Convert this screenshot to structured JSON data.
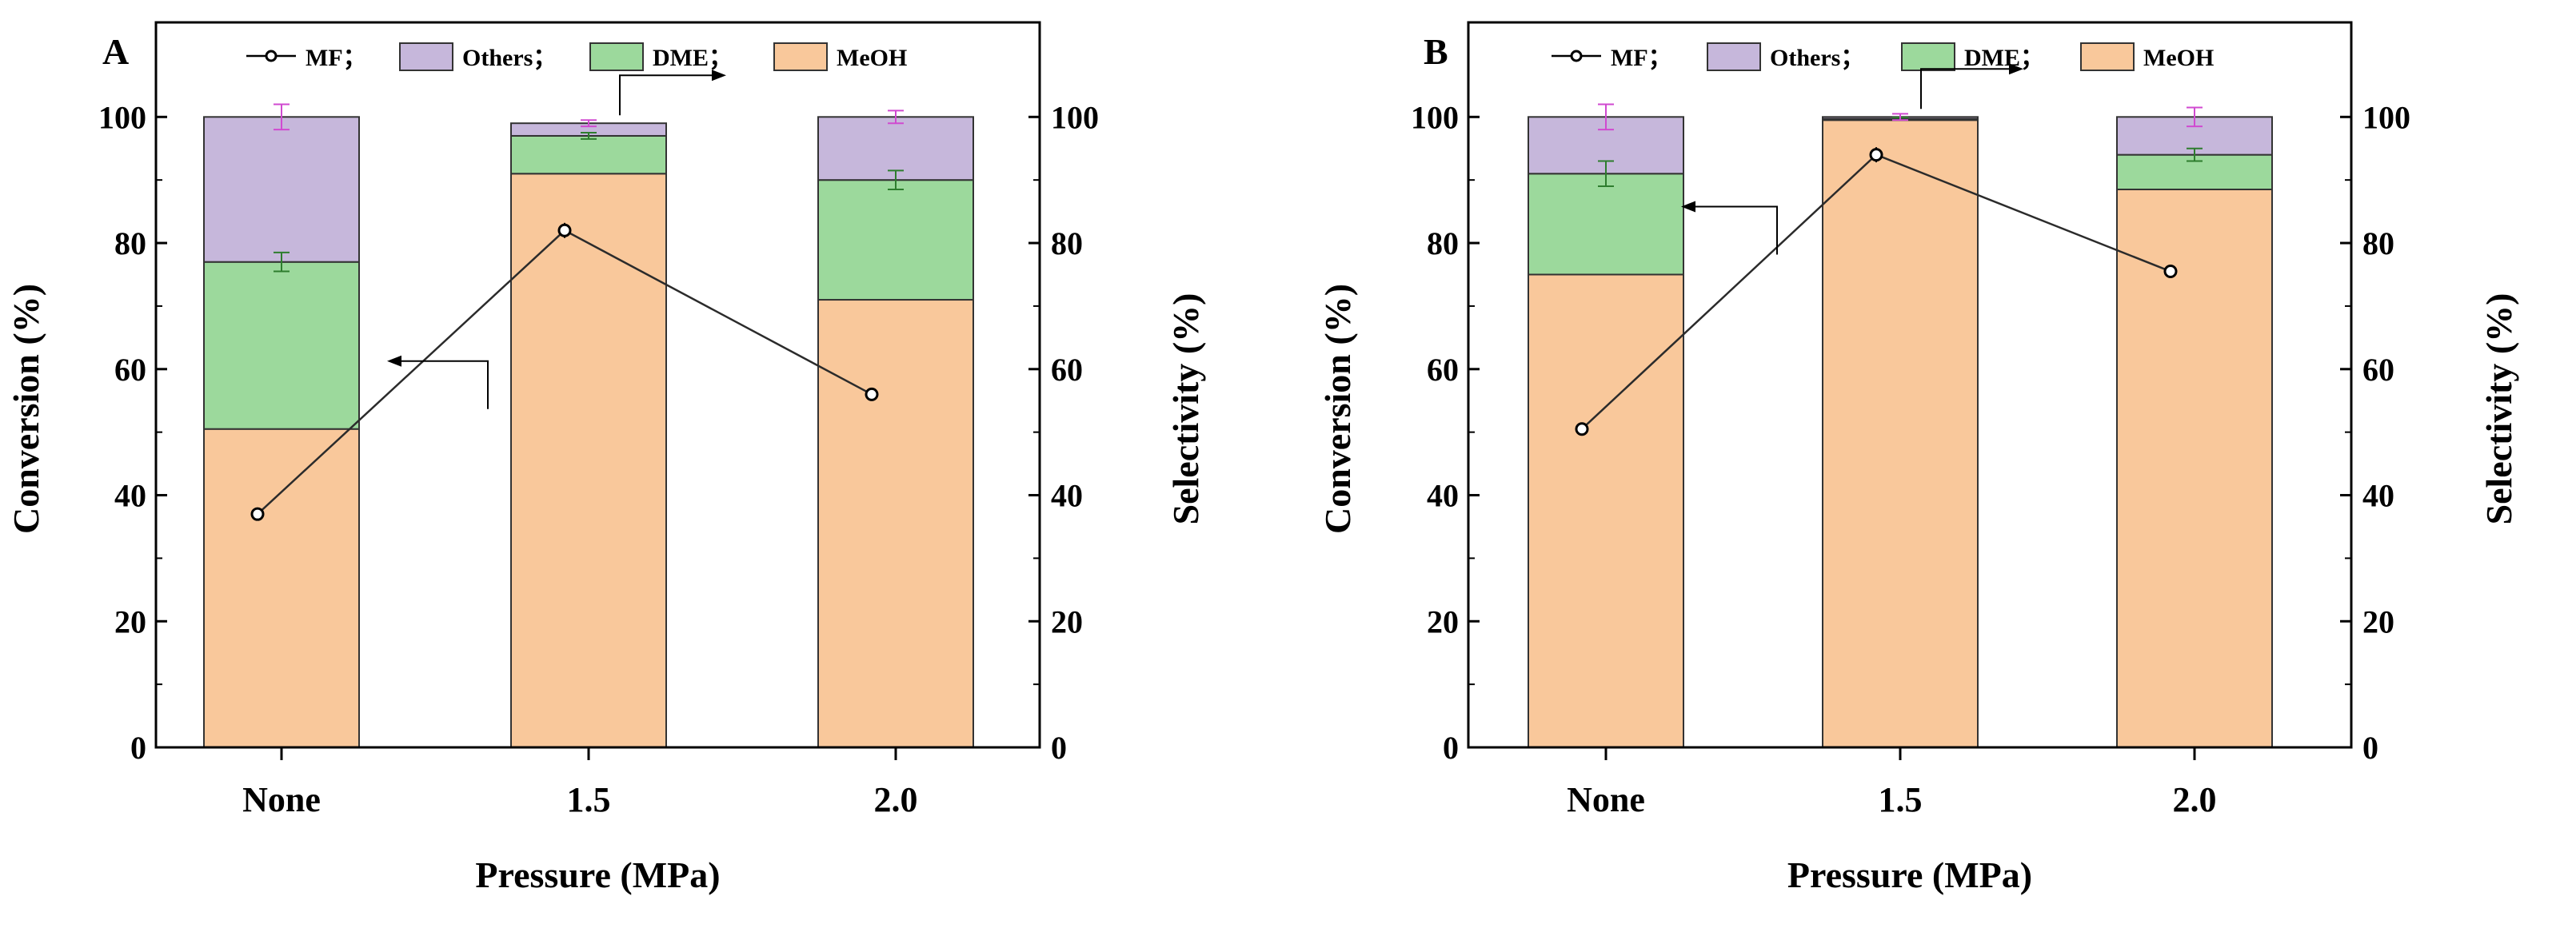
{
  "colors": {
    "meoh": "#F9C89B",
    "dme": "#9CD99C",
    "others": "#C6B7DB",
    "mf_line": "#2b2b2b",
    "error_bar": "#2e7d2e",
    "error_bar_top": "#d04ad0"
  },
  "chart_data": [
    {
      "type": "bar",
      "stacked": true,
      "panel_label": "A",
      "categories": [
        "None",
        "1.5",
        "2.0"
      ],
      "xlabel": "Pressure (MPa)",
      "ylabel_left": "Conversion (%)",
      "ylabel_right": "Selectivity (%)",
      "ylim_left": [
        0,
        115
      ],
      "ylim_right": [
        0,
        115
      ],
      "yticks_left": [
        "0",
        "20",
        "40",
        "60",
        "80",
        "100"
      ],
      "yticks_right": [
        "0",
        "20",
        "40",
        "60",
        "80",
        "100"
      ],
      "legend": {
        "mf": "MF；",
        "others": "Others；",
        "dme": "DME；",
        "meoh": "MeOH"
      },
      "series": [
        {
          "name": "MeOH",
          "values": [
            50.5,
            91,
            71
          ]
        },
        {
          "name": "DME",
          "values": [
            26.5,
            6,
            19
          ]
        },
        {
          "name": "Others",
          "values": [
            23,
            2,
            10
          ]
        }
      ],
      "error_bars": {
        "dme_top": [
          1.5,
          0.5,
          1.5
        ],
        "total_top": [
          2,
          0.5,
          1
        ]
      },
      "mf_line": {
        "name": "MF",
        "axis": "left",
        "values": [
          37,
          82,
          56
        ],
        "errors": [
          0.6,
          1.2,
          0.8
        ]
      },
      "arrows": {
        "left_at_category": 0,
        "right_at_category": 1
      }
    },
    {
      "type": "bar",
      "stacked": true,
      "panel_label": "B",
      "categories": [
        "None",
        "1.5",
        "2.0"
      ],
      "xlabel": "Pressure (MPa)",
      "ylabel_left": "Conversion (%)",
      "ylabel_right": "Selectivity (%)",
      "ylim_left": [
        0,
        115
      ],
      "ylim_right": [
        0,
        115
      ],
      "yticks_left": [
        "0",
        "20",
        "40",
        "60",
        "80",
        "100"
      ],
      "yticks_right": [
        "0",
        "20",
        "40",
        "60",
        "80",
        "100"
      ],
      "legend": {
        "mf": "MF；",
        "others": "Others；",
        "dme": "DME；",
        "meoh": "MeOH"
      },
      "series": [
        {
          "name": "MeOH",
          "values": [
            75,
            99.5,
            88.5
          ]
        },
        {
          "name": "DME",
          "values": [
            16,
            0.2,
            5.5
          ]
        },
        {
          "name": "Others",
          "values": [
            9,
            0.3,
            6
          ]
        }
      ],
      "error_bars": {
        "dme_top": [
          2,
          0.2,
          1
        ],
        "total_top": [
          2,
          0.5,
          1.5
        ]
      },
      "mf_line": {
        "name": "MF",
        "axis": "left",
        "values": [
          50.5,
          94,
          75.5
        ],
        "errors": [
          0.6,
          1.2,
          0.8
        ]
      },
      "arrows": {
        "left_at_category": 0,
        "right_at_category": 1
      }
    }
  ]
}
